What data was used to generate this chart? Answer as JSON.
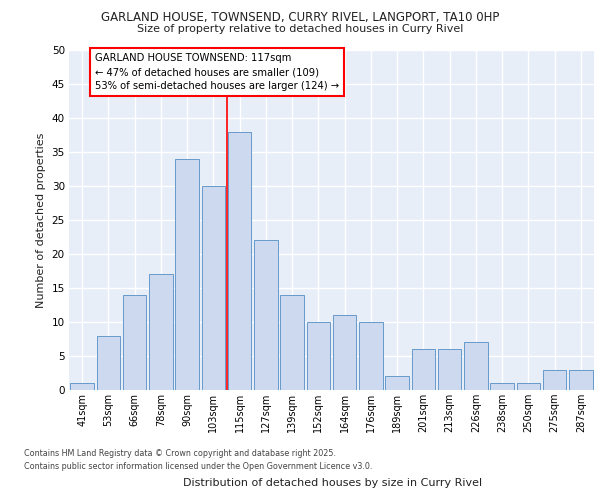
{
  "title": "GARLAND HOUSE, TOWNSEND, CURRY RIVEL, LANGPORT, TA10 0HP",
  "subtitle": "Size of property relative to detached houses in Curry Rivel",
  "xlabel": "Distribution of detached houses by size in Curry Rivel",
  "ylabel": "Number of detached properties",
  "bar_color": "#ccd9ee",
  "bar_edge_color": "#6699cc",
  "background_color": "#e8eef8",
  "grid_color": "#ffffff",
  "categories": [
    "41sqm",
    "53sqm",
    "66sqm",
    "78sqm",
    "90sqm",
    "103sqm",
    "115sqm",
    "127sqm",
    "139sqm",
    "152sqm",
    "164sqm",
    "176sqm",
    "189sqm",
    "201sqm",
    "213sqm",
    "226sqm",
    "238sqm",
    "250sqm",
    "275sqm",
    "287sqm"
  ],
  "values": [
    1,
    8,
    14,
    17,
    34,
    30,
    38,
    22,
    14,
    10,
    11,
    10,
    2,
    6,
    6,
    7,
    1,
    1,
    3,
    3
  ],
  "ylim": [
    0,
    50
  ],
  "yticks": [
    0,
    5,
    10,
    15,
    20,
    25,
    30,
    35,
    40,
    45,
    50
  ],
  "annotation_text": "GARLAND HOUSE TOWNSEND: 117sqm\n← 47% of detached houses are smaller (109)\n53% of semi-detached houses are larger (124) →",
  "red_line_bar_index": 6,
  "footer_line1": "Contains HM Land Registry data © Crown copyright and database right 2025.",
  "footer_line2": "Contains public sector information licensed under the Open Government Licence v3.0."
}
